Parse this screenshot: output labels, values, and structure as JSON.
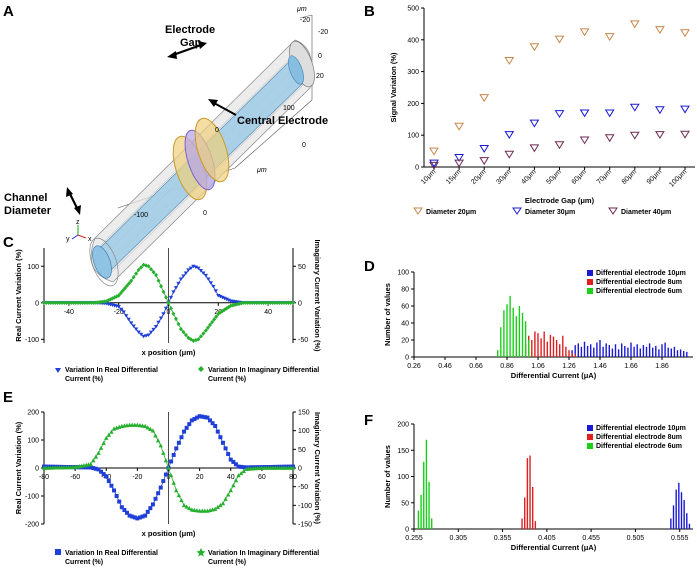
{
  "panels": {
    "A": {
      "label": "A",
      "annotations": {
        "electrode_gap_1": "Electrode",
        "electrode_gap_2": "Gap",
        "channel_diameter_1": "Channel",
        "channel_diameter_2": "Diameter",
        "central_electrode": "Central Electrode"
      },
      "axis_unit": "μm",
      "ticks": {
        "t1": "-20",
        "t2": "-20",
        "t3": "0",
        "t4": "20",
        "t5": "100",
        "t6": "0",
        "t7": "-100"
      },
      "axis_letters": {
        "x": "x",
        "y": "y",
        "z": "z"
      }
    },
    "B": {
      "label": "B",
      "legend": [
        "Diameter 20μm",
        "Diameter 30μm",
        "Diameter 40μm"
      ]
    },
    "C": {
      "label": "C",
      "legend": [
        "Variation In Real Differential Current (%)",
        "Variation In Imaginary Differential Current (%)"
      ],
      "legend_lines": [
        [
          "Variation In Real Differential",
          "Current (%)"
        ],
        [
          "Variation In Imaginary Differential",
          "Current (%)"
        ]
      ]
    },
    "D": {
      "label": "D"
    },
    "E": {
      "label": "E",
      "legend": [
        "Variation In Real Differential Current (%)",
        "Variation In Imaginary Differential Current (%)"
      ],
      "legend_lines": [
        [
          "Variation In Real Differential",
          "Current (%)"
        ],
        [
          "Variation In Imaginary Differential",
          "Current (%)"
        ]
      ]
    },
    "F": {
      "label": "F"
    }
  },
  "colors": {
    "orange": "#c8864a",
    "blue": "#1a1ad6",
    "purple": "#6e2a55",
    "realblue": "#1f3fd8",
    "green": "#27b02f",
    "red": "#e02020",
    "histgreen": "#19d019"
  },
  "chart_data": [
    {
      "id": "B",
      "type": "scatter",
      "xlabel": "Electrode Gap (μm)",
      "ylabel": "Signal Variation (%)",
      "categories": [
        "10μm",
        "15μm",
        "20μm",
        "30μm",
        "40μm",
        "50μm",
        "60μm",
        "70μm",
        "80μm",
        "90μm",
        "100μm"
      ],
      "yticks": [
        0,
        100,
        200,
        300,
        400,
        500
      ],
      "ylim": [
        0,
        500
      ],
      "series": [
        {
          "name": "Diameter 20μm",
          "color": "orange",
          "values": [
            50,
            128,
            218,
            335,
            378,
            402,
            425,
            410,
            450,
            432,
            422
          ]
        },
        {
          "name": "Diameter 30μm",
          "color": "blue",
          "values": [
            12,
            30,
            58,
            102,
            138,
            168,
            170,
            170,
            188,
            180,
            182
          ]
        },
        {
          "name": "Diameter 40μm",
          "color": "purple",
          "values": [
            5,
            12,
            20,
            40,
            60,
            70,
            85,
            92,
            100,
            102,
            103
          ]
        }
      ]
    },
    {
      "id": "C",
      "type": "line",
      "xlabel": "x position (μm)",
      "ylabel": "Real Current Variation (%)",
      "y2label": "Imaginary Current Variation (%)",
      "xlim": [
        -50,
        50
      ],
      "xticks": [
        -40,
        -20,
        0,
        20,
        40
      ],
      "ylim": [
        -110,
        150
      ],
      "yticks": [
        -100,
        0,
        100
      ],
      "y2lim": [
        -55,
        75
      ],
      "y2ticks": [
        -50,
        0,
        50
      ],
      "series": [
        {
          "name": "Variation In Real Differential Current (%)",
          "color": "realblue",
          "x": [
            -50,
            -40,
            -30,
            -25,
            -20,
            -18,
            -15,
            -12,
            -10,
            -8,
            -5,
            -2,
            0,
            2,
            5,
            8,
            10,
            12,
            15,
            18,
            20,
            25,
            30,
            40,
            50
          ],
          "values": [
            0,
            0,
            0,
            -2,
            -10,
            -25,
            -55,
            -80,
            -92,
            -88,
            -65,
            -30,
            0,
            30,
            65,
            90,
            100,
            95,
            75,
            45,
            20,
            5,
            0,
            0,
            0
          ]
        },
        {
          "name": "Variation In Imaginary Differential Current (%)",
          "color": "green",
          "axis": "y2",
          "x": [
            -50,
            -40,
            -30,
            -25,
            -20,
            -15,
            -12,
            -10,
            -8,
            -5,
            -2,
            0,
            2,
            5,
            8,
            10,
            12,
            15,
            20,
            25,
            30,
            40,
            50
          ],
          "values": [
            0,
            0,
            0,
            2,
            10,
            30,
            45,
            52,
            50,
            38,
            15,
            0,
            -15,
            -36,
            -48,
            -52,
            -50,
            -38,
            -15,
            -4,
            0,
            0,
            0
          ]
        }
      ]
    },
    {
      "id": "D",
      "type": "bar",
      "xlabel": "Differential Current (μA)",
      "ylabel": "Number of values",
      "xlim": [
        0.26,
        2.06
      ],
      "xticks": [
        0.26,
        0.46,
        0.66,
        0.86,
        1.06,
        1.26,
        1.46,
        1.66,
        1.86
      ],
      "ylim": [
        0,
        100
      ],
      "yticks": [
        0,
        20,
        40,
        60,
        80,
        100
      ],
      "series": [
        {
          "name": "Differential electrode 10μm",
          "color": "blue",
          "x": [
            1.28,
            1.3,
            1.32,
            1.34,
            1.36,
            1.38,
            1.4,
            1.42,
            1.44,
            1.46,
            1.48,
            1.5,
            1.52,
            1.54,
            1.56,
            1.58,
            1.6,
            1.62,
            1.64,
            1.66,
            1.68,
            1.7,
            1.72,
            1.74,
            1.76,
            1.78,
            1.8,
            1.82,
            1.84,
            1.86,
            1.88,
            1.9,
            1.92,
            1.94,
            1.96,
            1.98,
            2.0,
            2.02
          ],
          "values": [
            8,
            14,
            16,
            12,
            18,
            13,
            15,
            11,
            17,
            20,
            12,
            16,
            14,
            10,
            15,
            9,
            16,
            13,
            11,
            17,
            12,
            15,
            10,
            14,
            12,
            16,
            11,
            13,
            9,
            15,
            17,
            11,
            10,
            12,
            8,
            9,
            7,
            6
          ]
        },
        {
          "name": "Differential electrode 8um",
          "color": "red",
          "x": [
            0.98,
            1.0,
            1.02,
            1.04,
            1.06,
            1.08,
            1.1,
            1.12,
            1.14,
            1.16,
            1.18,
            1.2,
            1.22,
            1.24,
            1.26,
            1.28,
            1.3
          ],
          "values": [
            15,
            25,
            20,
            30,
            28,
            22,
            30,
            18,
            26,
            24,
            20,
            15,
            25,
            12,
            8,
            5,
            3
          ]
        },
        {
          "name": "Differential electrode 6um",
          "color": "histgreen",
          "x": [
            0.8,
            0.82,
            0.84,
            0.86,
            0.88,
            0.9,
            0.92,
            0.94,
            0.96,
            0.98,
            1.0
          ],
          "values": [
            8,
            35,
            55,
            62,
            72,
            58,
            48,
            60,
            52,
            42,
            20
          ]
        }
      ]
    },
    {
      "id": "E",
      "type": "line",
      "xlabel": "x position (μm)",
      "ylabel": "Real Current Variation (%)",
      "y2label": "Imaginary Current Variation (%)",
      "xlim": [
        -80,
        80
      ],
      "xticks": [
        -80,
        -60,
        -40,
        -20,
        0,
        20,
        40,
        60,
        80
      ],
      "ylim": [
        -200,
        200
      ],
      "yticks": [
        -200,
        -100,
        0,
        100,
        200
      ],
      "y2lim": [
        -150,
        150
      ],
      "y2ticks": [
        -150,
        -100,
        -50,
        0,
        50,
        100,
        150
      ],
      "series": [
        {
          "name": "Variation In Real Differential Current (%)",
          "color": "realblue",
          "x": [
            -80,
            -60,
            -50,
            -45,
            -40,
            -35,
            -30,
            -25,
            -20,
            -15,
            -10,
            -5,
            0,
            5,
            10,
            15,
            20,
            25,
            30,
            35,
            40,
            45,
            50,
            60,
            80
          ],
          "values": [
            5,
            3,
            2,
            -5,
            -30,
            -80,
            -140,
            -170,
            -180,
            -170,
            -130,
            -70,
            0,
            70,
            130,
            170,
            185,
            180,
            150,
            90,
            30,
            5,
            2,
            3,
            5
          ]
        },
        {
          "name": "Variation In Imaginary Differential Current (%)",
          "color": "green",
          "axis": "y2",
          "x": [
            -80,
            -60,
            -50,
            -45,
            -40,
            -35,
            -30,
            -25,
            -20,
            -15,
            -10,
            -5,
            0,
            5,
            10,
            15,
            20,
            25,
            30,
            35,
            40,
            45,
            50,
            60,
            80
          ],
          "values": [
            0,
            2,
            10,
            40,
            80,
            105,
            112,
            115,
            115,
            112,
            100,
            60,
            0,
            -60,
            -100,
            -112,
            -115,
            -115,
            -110,
            -95,
            -60,
            -20,
            -3,
            0,
            0
          ]
        }
      ]
    },
    {
      "id": "F",
      "type": "bar",
      "xlabel": "Differential Current (μA)",
      "ylabel": "Number of values",
      "xlim": [
        0.255,
        0.57
      ],
      "xticks": [
        0.255,
        0.305,
        0.355,
        0.405,
        0.455,
        0.505,
        0.555
      ],
      "xticklabels": [
        "0.255",
        "0.305",
        "0.355",
        "0.405",
        "0.455",
        "0.505",
        "0.555"
      ],
      "ylim": [
        0,
        200
      ],
      "yticks": [
        0,
        50,
        100,
        150,
        200
      ],
      "series": [
        {
          "name": "Differential electrode 10μm",
          "color": "blue",
          "x": [
            0.545,
            0.548,
            0.551,
            0.554,
            0.557,
            0.56,
            0.563,
            0.566
          ],
          "values": [
            20,
            45,
            75,
            88,
            70,
            55,
            30,
            10
          ]
        },
        {
          "name": "Differential electrode 8um",
          "color": "red",
          "x": [
            0.377,
            0.38,
            0.383,
            0.386,
            0.389,
            0.392
          ],
          "values": [
            20,
            60,
            135,
            140,
            80,
            15
          ]
        },
        {
          "name": "Differential electrode 6um",
          "color": "histgreen",
          "x": [
            0.26,
            0.263,
            0.266,
            0.269,
            0.272,
            0.275
          ],
          "values": [
            35,
            65,
            128,
            170,
            90,
            20
          ]
        }
      ]
    }
  ]
}
